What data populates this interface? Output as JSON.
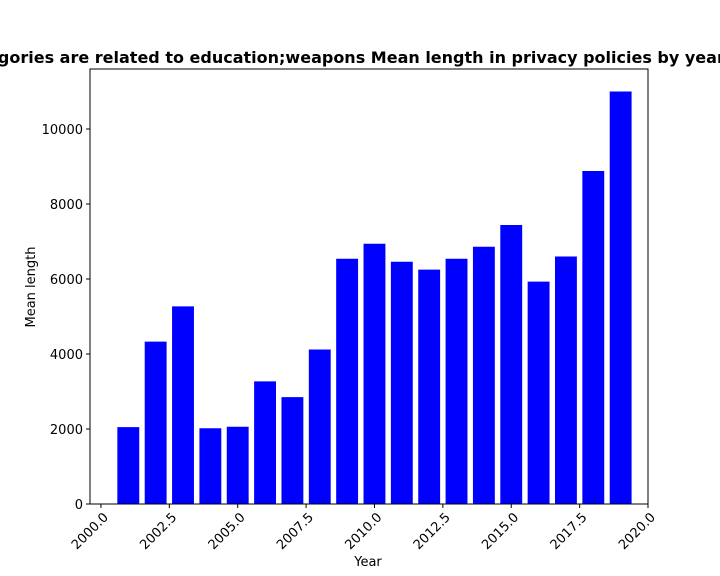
{
  "chart_data": {
    "type": "bar",
    "title": "Mean length in privacy policies by year of site creation and categories are related to education;weapons Mean length in privacy policies by year of site creation and categories are related to education;weapons",
    "xlabel": "Year",
    "ylabel": "Mean length",
    "xlim": [
      1999.6,
      2020.0
    ],
    "ylim": [
      0,
      11600
    ],
    "x_ticks": [
      "2000.0",
      "2002.5",
      "2005.0",
      "2007.5",
      "2010.0",
      "2012.5",
      "2015.0",
      "2017.5",
      "2020.0"
    ],
    "x_tick_values": [
      2000.0,
      2002.5,
      2005.0,
      2007.5,
      2010.0,
      2012.5,
      2015.0,
      2017.5,
      2020.0
    ],
    "y_ticks": [
      "0",
      "2000",
      "4000",
      "6000",
      "8000",
      "10000"
    ],
    "y_tick_values": [
      0,
      2000,
      4000,
      6000,
      8000,
      10000
    ],
    "bar_color": "#0000ff",
    "bar_width": 0.8,
    "x": [
      2001,
      2002,
      2003,
      2004,
      2005,
      2006,
      2007,
      2008,
      2009,
      2010,
      2011,
      2012,
      2013,
      2014,
      2015,
      2016,
      2017,
      2018,
      2019
    ],
    "values": [
      2050,
      4330,
      5270,
      2020,
      2060,
      3270,
      2850,
      4120,
      6540,
      6940,
      6460,
      6250,
      6540,
      6860,
      7440,
      5930,
      6600,
      8880,
      11000
    ],
    "grid": false
  }
}
